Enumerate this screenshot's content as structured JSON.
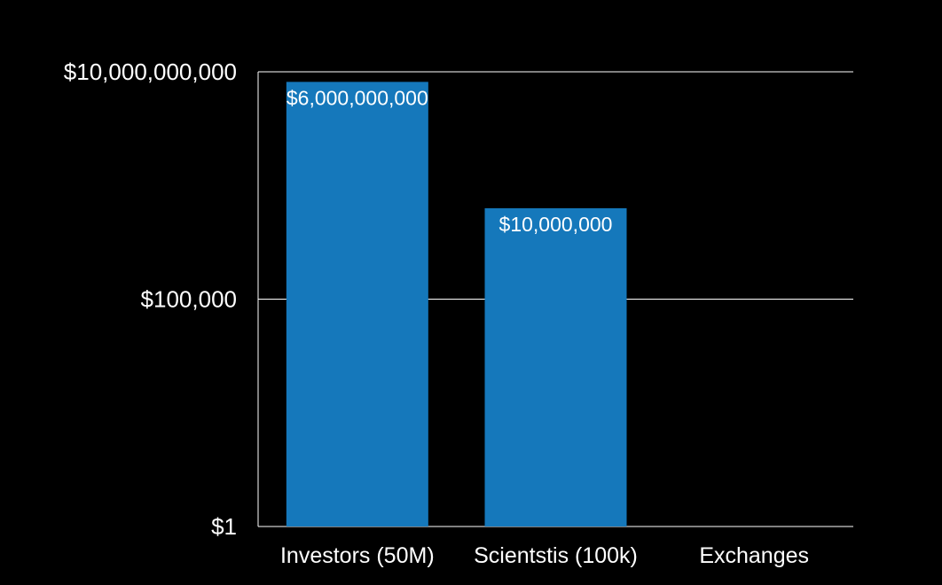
{
  "chart_data": {
    "type": "bar",
    "title": "",
    "xlabel": "",
    "ylabel": "",
    "yscale": "log",
    "ylim": [
      1,
      10000000000
    ],
    "yticks": [
      1,
      100000,
      10000000000
    ],
    "ytick_labels": [
      "$1",
      "$100,000",
      "$10,000,000,000"
    ],
    "categories": [
      "Investors (50M)",
      "Scientstis (100k)",
      "Exchanges"
    ],
    "values": [
      6000000000,
      10000000,
      null
    ],
    "value_labels": [
      "$6,000,000,000",
      "$10,000,000",
      ""
    ],
    "grid": true,
    "legend": "none",
    "colors": {
      "background": "#000000",
      "bar": "#1578bb",
      "text": "#ffffff",
      "grid": "#ffffff"
    }
  }
}
